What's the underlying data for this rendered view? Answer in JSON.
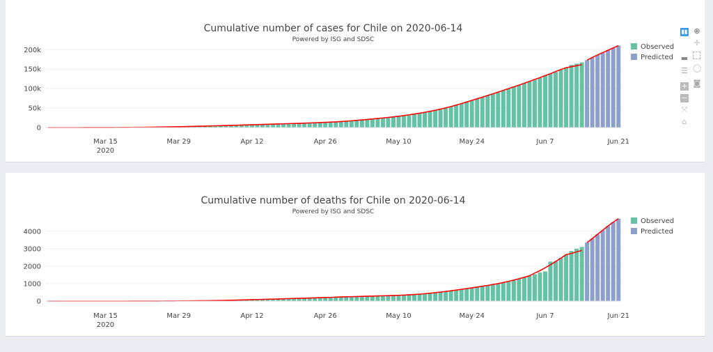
{
  "chart_data": [
    {
      "type": "bar",
      "title": "Cumulative number of cases for Chile on 2020-06-14",
      "subtitle": "Powered by ISG and SDSC",
      "start_date": "2020-03-04",
      "xrange_days": [
        -0.5,
        109.5
      ],
      "x_ticks": [
        {
          "label": "Mar 15",
          "sub": "2020",
          "day": 11
        },
        {
          "label": "Mar 29",
          "day": 25
        },
        {
          "label": "Apr 12",
          "day": 39
        },
        {
          "label": "Apr 26",
          "day": 53
        },
        {
          "label": "May 10",
          "day": 67
        },
        {
          "label": "May 24",
          "day": 81
        },
        {
          "label": "Jun 7",
          "day": 95
        },
        {
          "label": "Jun 21",
          "day": 109
        }
      ],
      "y_ticks": [
        {
          "label": "0",
          "value": 0
        },
        {
          "label": "50k",
          "value": 50000
        },
        {
          "label": "100k",
          "value": 100000
        },
        {
          "label": "150k",
          "value": 150000
        },
        {
          "label": "200k",
          "value": 200000
        }
      ],
      "ylim": [
        0,
        213000
      ],
      "grid": true,
      "legend": {
        "placement": "top-right",
        "items": [
          "Observed",
          "Predicted"
        ]
      },
      "colors": {
        "observed": "#66c2a5",
        "predicted": "#8da0cb",
        "fit": "#ff0000"
      },
      "observed": [
        1,
        4,
        5,
        7,
        10,
        13,
        17,
        23,
        33,
        43,
        61,
        75,
        155,
        201,
        238,
        342,
        434,
        537,
        632,
        746,
        922,
        1142,
        1306,
        1610,
        1909,
        2139,
        2449,
        2738,
        3031,
        3404,
        3737,
        4161,
        4471,
        4815,
        5116,
        5546,
        5972,
        6501,
        6927,
        7213,
        7525,
        7917,
        8273,
        8807,
        9252,
        9730,
        10088,
        10507,
        10832,
        11296,
        11812,
        12306,
        12858,
        13331,
        13813,
        14365,
        14885,
        16023,
        17008,
        18435,
        19663,
        20643,
        22016,
        23048,
        24581,
        25972,
        27219,
        28866,
        30063,
        31721,
        34381,
        37040,
        39542,
        41428,
        43781,
        46059,
        49579,
        53617,
        57581,
        61857,
        65393,
        69102,
        73997,
        77961,
        82289,
        86943,
        90638,
        94858,
        99688,
        105159,
        108686,
        113628,
        118292,
        122499,
        127745,
        134150,
        138846,
        142759,
        148496,
        154092,
        160846,
        164000,
        167355
      ],
      "predicted": [
        173000,
        180000,
        186500,
        192500,
        198500,
        204500,
        210500
      ]
    },
    {
      "type": "bar",
      "title": "Cumulative number of deaths for Chile on 2020-06-14",
      "subtitle": "Powered by ISG and SDSC",
      "start_date": "2020-03-04",
      "xrange_days": [
        -0.5,
        109.5
      ],
      "x_ticks": [
        {
          "label": "Mar 15",
          "sub": "2020",
          "day": 11
        },
        {
          "label": "Mar 29",
          "day": 25
        },
        {
          "label": "Apr 12",
          "day": 39
        },
        {
          "label": "Apr 26",
          "day": 53
        },
        {
          "label": "May 10",
          "day": 67
        },
        {
          "label": "May 24",
          "day": 81
        },
        {
          "label": "Jun 7",
          "day": 95
        },
        {
          "label": "Jun 21",
          "day": 109
        }
      ],
      "y_ticks": [
        {
          "label": "0",
          "value": 0
        },
        {
          "label": "1000",
          "value": 1000
        },
        {
          "label": "2000",
          "value": 2000
        },
        {
          "label": "3000",
          "value": 3000
        },
        {
          "label": "4000",
          "value": 4000
        }
      ],
      "ylim": [
        0,
        4750
      ],
      "grid": true,
      "legend": {
        "placement": "top-right",
        "items": [
          "Observed",
          "Predicted"
        ]
      },
      "colors": {
        "observed": "#66c2a5",
        "predicted": "#8da0cb",
        "fit": "#ff0000"
      },
      "observed": [
        0,
        0,
        0,
        0,
        0,
        0,
        0,
        0,
        0,
        0,
        0,
        0,
        0,
        0,
        0,
        0,
        0,
        1,
        1,
        2,
        2,
        3,
        4,
        6,
        8,
        8,
        12,
        16,
        18,
        22,
        22,
        27,
        34,
        37,
        43,
        48,
        57,
        65,
        73,
        82,
        92,
        94,
        105,
        116,
        126,
        133,
        139,
        147,
        160,
        168,
        181,
        189,
        198,
        207,
        216,
        227,
        234,
        234,
        260,
        270,
        275,
        281,
        285,
        294,
        304,
        312,
        323,
        335,
        335,
        346,
        368,
        394,
        421,
        450,
        478,
        509,
        544,
        589,
        630,
        673,
        716,
        761,
        806,
        841,
        890,
        944,
        997,
        1054,
        1113,
        1188,
        1275,
        1356,
        1448,
        1541,
        1637,
        1700,
        2264,
        2283,
        2475,
        2648,
        2870,
        3000,
        3101
      ],
      "predicted": [
        3350,
        3580,
        3820,
        4060,
        4300,
        4520,
        4720
      ]
    }
  ],
  "modebar": {
    "icons": [
      "bar-chart-icon",
      "zoom-icon",
      "pan-icon",
      "box-select-icon",
      "hover-closest-icon",
      "lasso-icon",
      "hover-compare-icon",
      "camera-icon",
      "zoom-in-icon",
      "zoom-out-icon",
      "autoscale-icon",
      "reset-axes-icon"
    ],
    "active_color": "#3d9cf0"
  }
}
